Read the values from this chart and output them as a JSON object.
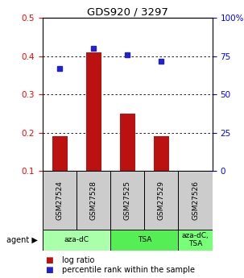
{
  "title": "GDS920 / 3297",
  "samples": [
    "GSM27524",
    "GSM27528",
    "GSM27525",
    "GSM27529",
    "GSM27526"
  ],
  "log_ratio": [
    0.19,
    0.41,
    0.25,
    0.19,
    0.1
  ],
  "percentile": [
    67,
    80,
    76,
    72,
    0
  ],
  "bar_color": "#bb1111",
  "dot_color": "#2222cc",
  "ylim_left": [
    0.1,
    0.5
  ],
  "ylim_right": [
    0,
    100
  ],
  "yticks_left": [
    0.1,
    0.2,
    0.3,
    0.4,
    0.5
  ],
  "yticks_right": [
    0,
    25,
    50,
    75,
    100
  ],
  "yticklabels_right": [
    "0",
    "25",
    "50",
    "75",
    "100%"
  ],
  "agent_groups": [
    {
      "label": "aza-dC",
      "span": [
        0,
        2
      ],
      "color": "#aaffaa"
    },
    {
      "label": "TSA",
      "span": [
        2,
        4
      ],
      "color": "#55ee55"
    },
    {
      "label": "aza-dC,\nTSA",
      "span": [
        4,
        5
      ],
      "color": "#77ff77"
    }
  ],
  "legend_bar_label": "log ratio",
  "legend_dot_label": "percentile rank within the sample",
  "sample_box_color": "#cccccc",
  "bar_width": 0.45,
  "grid_dotted_at": [
    0.2,
    0.3,
    0.4
  ]
}
